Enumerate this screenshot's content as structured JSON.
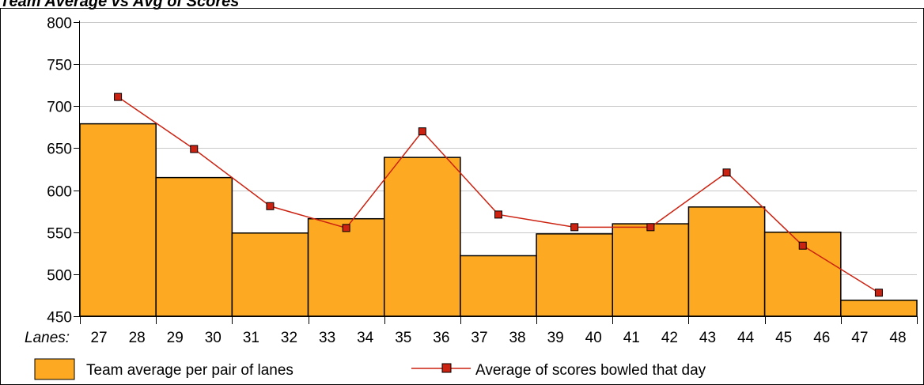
{
  "chart_data": {
    "type": "bar",
    "title": "Team Average vs Avg of Scores",
    "xlabel": "Lanes:",
    "ylabel": "",
    "ylim": [
      450,
      800
    ],
    "yticks": [
      450,
      500,
      550,
      600,
      650,
      700,
      750,
      800
    ],
    "lane_labels": [
      "27",
      "28",
      "29",
      "30",
      "31",
      "32",
      "33",
      "34",
      "35",
      "36",
      "37",
      "38",
      "39",
      "40",
      "41",
      "42",
      "43",
      "44",
      "45",
      "46",
      "47",
      "48"
    ],
    "categories": [
      "27-28",
      "29-30",
      "31-32",
      "33-34",
      "35-36",
      "37-38",
      "39-40",
      "41-42",
      "43-44",
      "45-46",
      "47-48"
    ],
    "grid": true,
    "legend_position": "bottom",
    "series": [
      {
        "name": "Team average per pair of lanes",
        "kind": "bar",
        "color": "#FDAA22",
        "values": [
          679,
          615,
          549,
          566,
          639,
          522,
          548,
          560,
          580,
          550,
          469
        ]
      },
      {
        "name": "Average of scores bowled that day",
        "kind": "line",
        "color": "#CC2211",
        "marker": "square",
        "values": [
          711,
          649,
          581,
          555,
          670,
          571,
          556,
          556,
          621,
          534,
          478
        ]
      }
    ]
  }
}
